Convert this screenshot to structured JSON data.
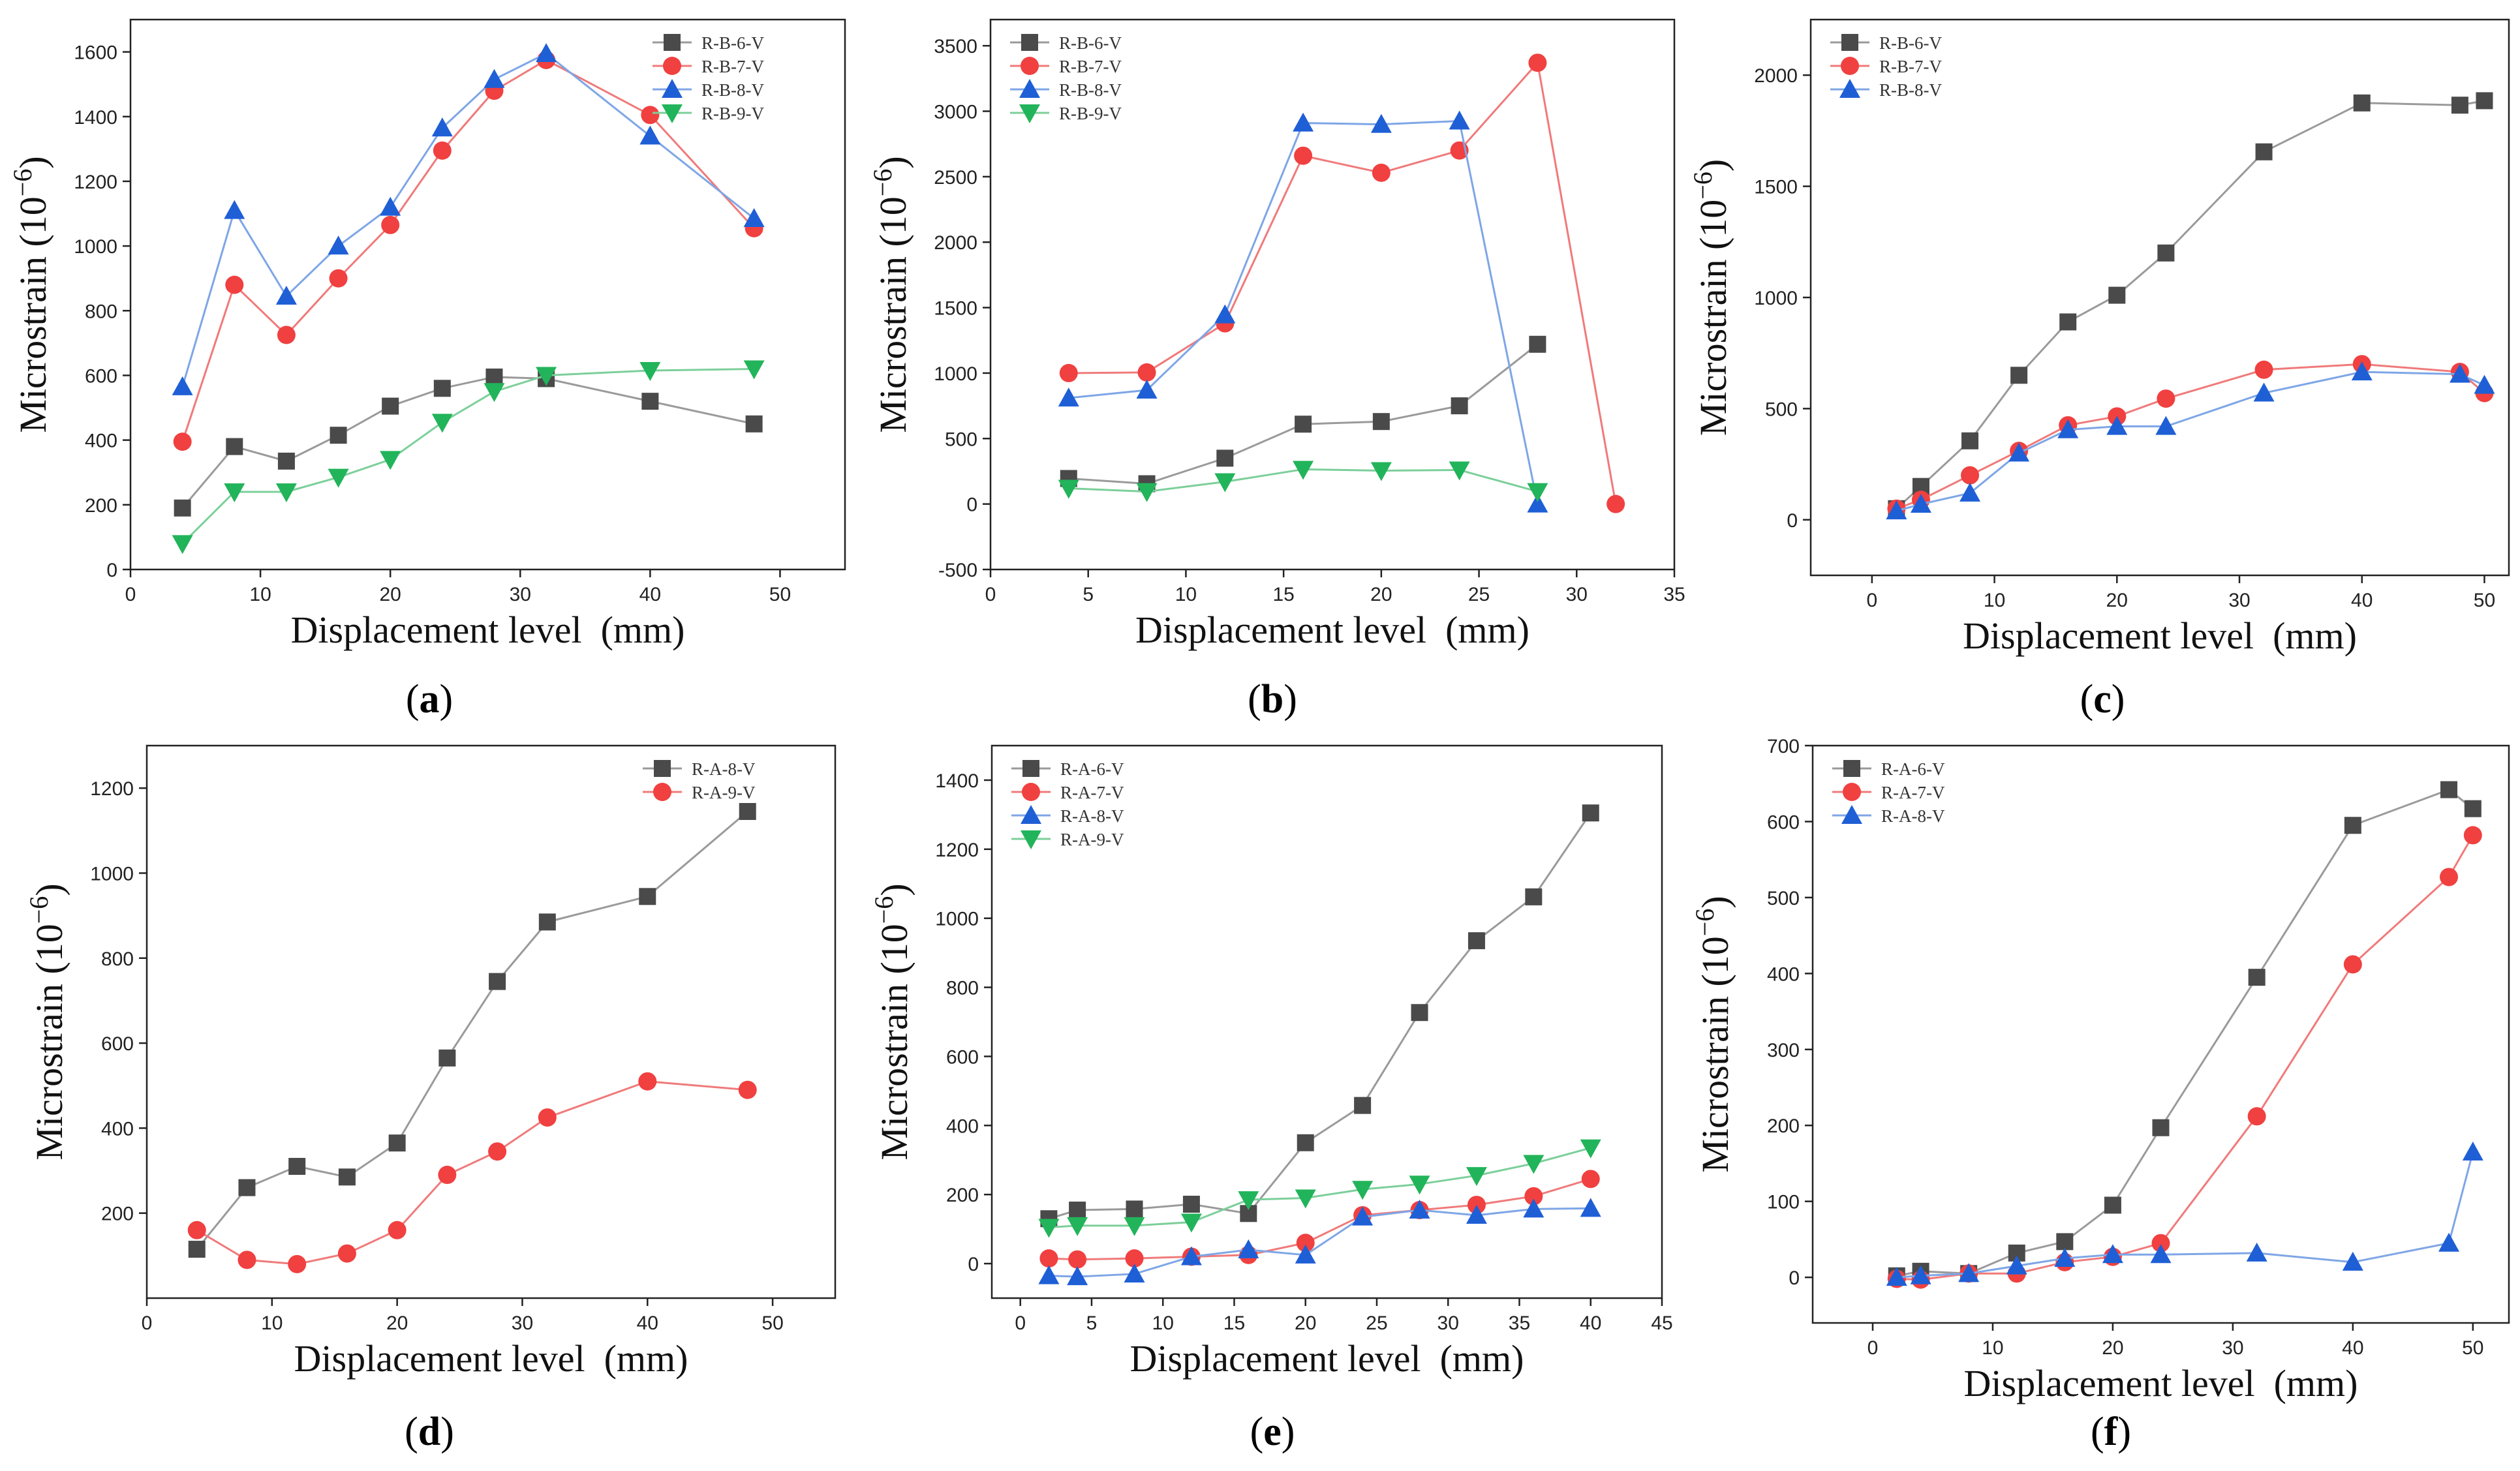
{
  "chart_data": [
    {
      "panel": "(a)",
      "panel_letter": "a",
      "type": "line",
      "xlabel": "Displacement level  (mm)",
      "ylabel": "Microstrain (10",
      "ylabel_exp": "−6",
      "ylabel_close": ")",
      "xlim": [
        0,
        55
      ],
      "ylim": [
        0,
        1700
      ],
      "xticks": [
        0,
        10,
        20,
        30,
        40,
        50
      ],
      "yticks": [
        0,
        200,
        400,
        600,
        800,
        1000,
        1200,
        1400,
        1600
      ],
      "legend_position": "top-right",
      "series": [
        {
          "name": "R-B-6-V",
          "marker": "square",
          "color": "#4a4a4a",
          "line_color": "#9a9a9a",
          "x": [
            4,
            8,
            12,
            16,
            20,
            24,
            28,
            32,
            40,
            48
          ],
          "y": [
            190,
            380,
            335,
            415,
            505,
            560,
            595,
            590,
            520,
            450
          ]
        },
        {
          "name": "R-B-7-V",
          "marker": "circle",
          "color": "#f04040",
          "line_color": "#f07a7a",
          "x": [
            4,
            8,
            12,
            16,
            20,
            24,
            28,
            32,
            40,
            48
          ],
          "y": [
            395,
            880,
            725,
            900,
            1065,
            1295,
            1480,
            1575,
            1405,
            1055
          ]
        },
        {
          "name": "R-B-8-V",
          "marker": "triangle-up",
          "color": "#1f5fd6",
          "line_color": "#7ea6e6",
          "x": [
            4,
            8,
            12,
            16,
            20,
            24,
            28,
            32,
            40,
            48
          ],
          "y": [
            565,
            1110,
            845,
            1000,
            1120,
            1365,
            1515,
            1595,
            1340,
            1085
          ]
        },
        {
          "name": "R-B-9-V",
          "marker": "triangle-down",
          "color": "#22b45a",
          "line_color": "#7ccf9a",
          "x": [
            4,
            8,
            12,
            16,
            20,
            24,
            28,
            32,
            40,
            48
          ],
          "y": [
            80,
            240,
            240,
            285,
            340,
            455,
            550,
            600,
            615,
            620
          ]
        }
      ]
    },
    {
      "panel": "(b)",
      "panel_letter": "b",
      "type": "line",
      "xlabel": "Displacement level  (mm)",
      "ylabel": "Microstrain (10",
      "ylabel_exp": "−6",
      "ylabel_close": ")",
      "xlim": [
        0,
        35
      ],
      "ylim": [
        -500,
        3700
      ],
      "xticks": [
        0,
        5,
        10,
        15,
        20,
        25,
        30,
        35
      ],
      "yticks": [
        -500,
        0,
        500,
        1000,
        1500,
        2000,
        2500,
        3000,
        3500
      ],
      "legend_position": "top-left",
      "series": [
        {
          "name": "R-B-6-V",
          "marker": "square",
          "color": "#4a4a4a",
          "line_color": "#9a9a9a",
          "x": [
            4,
            8,
            12,
            16,
            20,
            24,
            28
          ],
          "y": [
            195,
            155,
            350,
            610,
            630,
            750,
            1220
          ]
        },
        {
          "name": "R-B-7-V",
          "marker": "circle",
          "color": "#f04040",
          "line_color": "#f07a7a",
          "x": [
            4,
            8,
            12,
            16,
            20,
            24,
            28,
            32
          ],
          "y": [
            1000,
            1005,
            1380,
            2660,
            2530,
            2700,
            3370,
            0
          ]
        },
        {
          "name": "R-B-8-V",
          "marker": "triangle-up",
          "color": "#1f5fd6",
          "line_color": "#7ea6e6",
          "x": [
            4,
            8,
            12,
            16,
            20,
            24,
            28
          ],
          "y": [
            810,
            870,
            1445,
            2910,
            2900,
            2925,
            0
          ]
        },
        {
          "name": "R-B-9-V",
          "marker": "triangle-down",
          "color": "#22b45a",
          "line_color": "#7ccf9a",
          "x": [
            4,
            8,
            12,
            16,
            20,
            24,
            28
          ],
          "y": [
            120,
            95,
            170,
            265,
            255,
            260,
            95
          ]
        }
      ]
    },
    {
      "panel": "(c)",
      "panel_letter": "c",
      "type": "line",
      "xlabel": "Displacement level  (mm)",
      "ylabel": "Microstrain (10",
      "ylabel_exp": "−6",
      "ylabel_close": ")",
      "xlim": [
        -5,
        52
      ],
      "ylim": [
        -250,
        2250
      ],
      "xticks": [
        0,
        10,
        20,
        30,
        40,
        50
      ],
      "yticks": [
        0,
        500,
        1000,
        1500,
        2000
      ],
      "legend_position": "top-left",
      "series": [
        {
          "name": "R-B-6-V",
          "marker": "square",
          "color": "#4a4a4a",
          "line_color": "#9a9a9a",
          "x": [
            2,
            4,
            8,
            12,
            16,
            20,
            24,
            32,
            40,
            48,
            50
          ],
          "y": [
            50,
            150,
            355,
            650,
            890,
            1010,
            1200,
            1655,
            1875,
            1865,
            1885
          ]
        },
        {
          "name": "R-B-7-V",
          "marker": "circle",
          "color": "#f04040",
          "line_color": "#f07a7a",
          "x": [
            2,
            4,
            8,
            12,
            16,
            20,
            24,
            32,
            40,
            48,
            50
          ],
          "y": [
            50,
            90,
            200,
            310,
            425,
            465,
            545,
            675,
            700,
            665,
            570
          ]
        },
        {
          "name": "R-B-8-V",
          "marker": "triangle-up",
          "color": "#1f5fd6",
          "line_color": "#7ea6e6",
          "x": [
            2,
            4,
            8,
            12,
            16,
            20,
            24,
            32,
            40,
            48,
            50
          ],
          "y": [
            40,
            70,
            120,
            300,
            405,
            420,
            420,
            570,
            665,
            655,
            605
          ]
        }
      ]
    },
    {
      "panel": "(d)",
      "panel_letter": "d",
      "type": "line",
      "xlabel": "Displacement level  (mm)",
      "ylabel": "Microstrain (10",
      "ylabel_exp": "−6",
      "ylabel_close": ")",
      "xlim": [
        0,
        55
      ],
      "ylim": [
        0,
        1300
      ],
      "xticks": [
        0,
        10,
        20,
        30,
        40,
        50
      ],
      "yticks": [
        200,
        400,
        600,
        800,
        1000,
        1200
      ],
      "legend_position": "top-right",
      "series": [
        {
          "name": "R-A-8-V",
          "marker": "square",
          "color": "#4a4a4a",
          "line_color": "#9a9a9a",
          "x": [
            4,
            8,
            12,
            16,
            20,
            24,
            28,
            32,
            40,
            48
          ],
          "y": [
            115,
            260,
            310,
            285,
            365,
            565,
            745,
            885,
            945,
            1145
          ]
        },
        {
          "name": "R-A-9-V",
          "marker": "circle",
          "color": "#f04040",
          "line_color": "#f07a7a",
          "x": [
            4,
            8,
            12,
            16,
            20,
            24,
            28,
            32,
            40,
            48
          ],
          "y": [
            160,
            90,
            80,
            105,
            160,
            290,
            345,
            425,
            510,
            490
          ]
        }
      ]
    },
    {
      "panel": "(e)",
      "panel_letter": "e",
      "type": "line",
      "xlabel": "Displacement level  (mm)",
      "ylabel": "Microstrain (10",
      "ylabel_exp": "−6",
      "ylabel_close": ")",
      "xlim": [
        -2,
        45
      ],
      "ylim": [
        -100,
        1500
      ],
      "xticks": [
        0,
        5,
        10,
        15,
        20,
        25,
        30,
        35,
        40,
        45
      ],
      "yticks": [
        0,
        200,
        400,
        600,
        800,
        1000,
        1200,
        1400
      ],
      "legend_position": "top-left",
      "series": [
        {
          "name": "R-A-6-V",
          "marker": "square",
          "color": "#4a4a4a",
          "line_color": "#9a9a9a",
          "x": [
            2,
            4,
            8,
            12,
            16,
            20,
            24,
            28,
            32,
            36,
            40
          ],
          "y": [
            130,
            155,
            158,
            172,
            145,
            350,
            458,
            727,
            935,
            1062,
            1305
          ]
        },
        {
          "name": "R-A-7-V",
          "marker": "circle",
          "color": "#f04040",
          "line_color": "#f07a7a",
          "x": [
            2,
            4,
            8,
            12,
            16,
            20,
            24,
            28,
            32,
            36,
            40
          ],
          "y": [
            15,
            12,
            15,
            20,
            25,
            60,
            140,
            155,
            170,
            195,
            245
          ]
        },
        {
          "name": "R-A-8-V",
          "marker": "triangle-up",
          "color": "#1f5fd6",
          "line_color": "#7ea6e6",
          "x": [
            2,
            4,
            8,
            12,
            16,
            20,
            24,
            28,
            32,
            36,
            40
          ],
          "y": [
            -35,
            -38,
            -30,
            20,
            40,
            25,
            135,
            155,
            140,
            158,
            160
          ]
        },
        {
          "name": "R-A-9-V",
          "marker": "triangle-down",
          "color": "#22b45a",
          "line_color": "#7ccf9a",
          "x": [
            2,
            4,
            8,
            12,
            16,
            20,
            24,
            28,
            32,
            36,
            40
          ],
          "y": [
            105,
            110,
            110,
            120,
            185,
            190,
            215,
            230,
            255,
            290,
            335
          ]
        }
      ]
    },
    {
      "panel": "(f)",
      "panel_letter": "f",
      "type": "line",
      "xlabel": "Displacement level  (mm)",
      "ylabel": "Microstrain (10",
      "ylabel_exp": "−6",
      "ylabel_close": ")",
      "xlim": [
        -5,
        53
      ],
      "ylim": [
        -60,
        700
      ],
      "xticks": [
        0,
        10,
        20,
        30,
        40,
        50
      ],
      "yticks": [
        0,
        100,
        200,
        300,
        400,
        500,
        600,
        700
      ],
      "legend_position": "top-left",
      "series": [
        {
          "name": "R-A-6-V",
          "marker": "square",
          "color": "#4a4a4a",
          "line_color": "#9a9a9a",
          "x": [
            2,
            4,
            8,
            12,
            16,
            20,
            24,
            32,
            40,
            48,
            50
          ],
          "y": [
            2,
            8,
            5,
            32,
            47,
            95,
            197,
            395,
            595,
            642,
            617
          ]
        },
        {
          "name": "R-A-7-V",
          "marker": "circle",
          "color": "#f04040",
          "line_color": "#f07a7a",
          "x": [
            2,
            4,
            8,
            12,
            16,
            20,
            24,
            32,
            40,
            48,
            50
          ],
          "y": [
            -2,
            -3,
            5,
            5,
            20,
            27,
            45,
            212,
            412,
            527,
            582
          ]
        },
        {
          "name": "R-A-8-V",
          "marker": "triangle-up",
          "color": "#1f5fd6",
          "line_color": "#7ea6e6",
          "x": [
            2,
            4,
            8,
            12,
            16,
            20,
            24,
            32,
            40,
            48,
            50
          ],
          "y": [
            0,
            2,
            5,
            15,
            25,
            30,
            30,
            32,
            20,
            45,
            165
          ]
        }
      ]
    }
  ]
}
